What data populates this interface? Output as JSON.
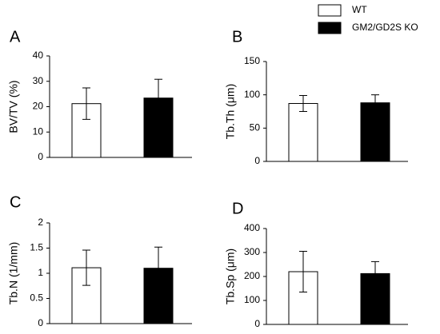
{
  "legend": [
    {
      "name": "WT",
      "color": "#ffffff"
    },
    {
      "name": "GM2/GD2S KO",
      "color": "#000000"
    }
  ],
  "chart_data": [
    {
      "type": "bar",
      "label": "A",
      "ylabel": "BV/TV (%)",
      "values": [
        21.2,
        23.4
      ],
      "errors": [
        6.2,
        7.4
      ],
      "ylim": [
        0,
        40
      ],
      "yticks": [
        0,
        10,
        20,
        30,
        40
      ]
    },
    {
      "type": "bar",
      "label": "B",
      "ylabel": "Tb.Th (μm)",
      "values": [
        87,
        88
      ],
      "errors": [
        12,
        12
      ],
      "ylim": [
        0,
        150
      ],
      "yticks": [
        0,
        50,
        100,
        150
      ]
    },
    {
      "type": "bar",
      "label": "C",
      "ylabel": "Tb.N (1/mm)",
      "values": [
        1.11,
        1.1
      ],
      "errors": [
        0.35,
        0.42
      ],
      "ylim": [
        0,
        2
      ],
      "yticks": [
        0,
        0.5,
        1,
        1.5,
        2
      ]
    },
    {
      "type": "bar",
      "label": "D",
      "ylabel": "Tb.Sp (μm)",
      "values": [
        220,
        212
      ],
      "errors": [
        85,
        50
      ],
      "ylim": [
        0,
        400
      ],
      "yticks": [
        0,
        100,
        200,
        300,
        400
      ]
    }
  ]
}
